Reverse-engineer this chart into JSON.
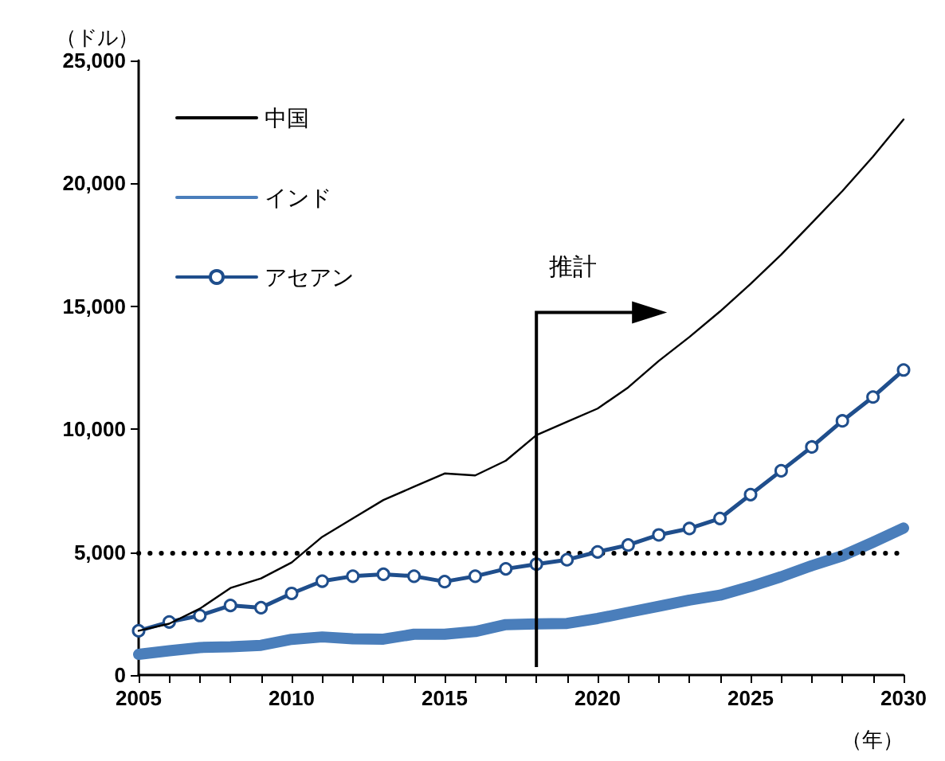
{
  "chart_data": {
    "type": "line",
    "ylabel": "（ドル）",
    "xlabel": "（年）",
    "x": [
      2005,
      2006,
      2007,
      2008,
      2009,
      2010,
      2011,
      2012,
      2013,
      2014,
      2015,
      2016,
      2017,
      2018,
      2019,
      2020,
      2021,
      2022,
      2023,
      2024,
      2025,
      2026,
      2027,
      2028,
      2029,
      2030
    ],
    "series": [
      {
        "name": "中国",
        "color": "#000000",
        "marker": "none",
        "values": [
          1800,
          2090,
          2700,
          3540,
          3930,
          4580,
          5620,
          6370,
          7120,
          7660,
          8200,
          8120,
          8720,
          9760,
          10300,
          10840,
          11700,
          12780,
          13750,
          14790,
          15910,
          17100,
          18390,
          19690,
          21090,
          22600
        ]
      },
      {
        "name": "インド",
        "color": "#4a7ebb",
        "marker": "none",
        "values": [
          840,
          990,
          1120,
          1150,
          1210,
          1450,
          1550,
          1470,
          1460,
          1660,
          1660,
          1770,
          2050,
          2080,
          2100,
          2300,
          2550,
          2800,
          3050,
          3250,
          3600,
          4000,
          4450,
          4850,
          5400,
          5980
        ]
      },
      {
        "name": "アセアン",
        "color": "#1f4e8c",
        "marker": "circle",
        "values": [
          1800,
          2160,
          2420,
          2830,
          2740,
          3320,
          3820,
          4020,
          4100,
          4020,
          3800,
          4020,
          4320,
          4510,
          4690,
          5010,
          5290,
          5700,
          5960,
          6370,
          7340,
          8310,
          9280,
          10340,
          11310,
          12410
        ]
      }
    ],
    "xlim": [
      2005,
      2030
    ],
    "xticks": [
      2005,
      {
        "value": 2006,
        "label": null
      },
      {
        "value": 2007,
        "label": null
      },
      {
        "value": 2008,
        "label": null
      },
      {
        "value": 2009,
        "label": null
      },
      2010,
      {
        "value": 2011,
        "label": null
      },
      {
        "value": 2012,
        "label": null
      },
      {
        "value": 2013,
        "label": null
      },
      {
        "value": 2014,
        "label": null
      },
      2015,
      {
        "value": 2016,
        "label": null
      },
      {
        "value": 2017,
        "label": null
      },
      {
        "value": 2018,
        "label": null
      },
      {
        "value": 2019,
        "label": null
      },
      2020,
      {
        "value": 2021,
        "label": null
      },
      {
        "value": 2022,
        "label": null
      },
      {
        "value": 2023,
        "label": null
      },
      {
        "value": 2024,
        "label": null
      },
      2025,
      {
        "value": 2026,
        "label": null
      },
      {
        "value": 2027,
        "label": null
      },
      {
        "value": 2028,
        "label": null
      },
      {
        "value": 2029,
        "label": null
      },
      2030
    ],
    "ylim": [
      0,
      25000
    ],
    "yticks": [
      0,
      {
        "value": 5000,
        "label": "5,000"
      },
      {
        "value": 10000,
        "label": "10,000"
      },
      {
        "value": 15000,
        "label": "15,000"
      },
      {
        "value": 20000,
        "label": "20,000"
      },
      {
        "value": 25000,
        "label": "25,000"
      }
    ],
    "ref_lines": [
      {
        "axis": "y",
        "value": 5000,
        "color": "#000000",
        "line_style": "dotted"
      },
      {
        "axis": "x",
        "value": 2018,
        "label": "推計",
        "color": "#000000"
      }
    ],
    "grid": false,
    "legend": "top left",
    "line_style": "solid"
  }
}
